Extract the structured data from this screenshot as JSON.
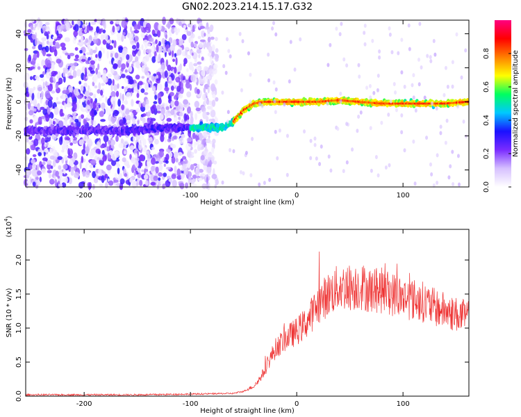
{
  "page_title": "GN02.2023.214.15.17.G32",
  "chart_data": [
    {
      "type": "heatmap",
      "title": "GN02.2023.214.15.17.G32",
      "xlabel": "Height of straight line (km)",
      "ylabel": "Frequency (Hz)",
      "xlim": [
        -255,
        162
      ],
      "ylim": [
        -50,
        48
      ],
      "xticks": [
        -200,
        -100,
        0,
        100
      ],
      "yticks": [
        -40,
        -20,
        0,
        20,
        40
      ],
      "colorbar": {
        "label": "Normalized spectral amplitude",
        "range": [
          0.0,
          1.0
        ],
        "ticks": [
          "0.0",
          "0.2",
          "0.4",
          "0.6",
          "0.8"
        ],
        "colors": [
          "#ffffff",
          "#d6c0ff",
          "#7a2cff",
          "#1a10ff",
          "#00c8ff",
          "#00ff60",
          "#ffff00",
          "#ff8000",
          "#ff0000",
          "#ff0080"
        ]
      },
      "ridge": {
        "x": [
          -160,
          -140,
          -120,
          -100,
          -90,
          -80,
          -70,
          -60,
          -50,
          -40,
          -30,
          -20,
          -10,
          0,
          20,
          40,
          60,
          80,
          100,
          120,
          140,
          160
        ],
        "frequency": [
          -17,
          -16,
          -15,
          -15,
          -15,
          -15,
          -15,
          -12,
          -5,
          -1,
          0,
          0,
          0,
          0,
          0,
          1,
          0,
          -1,
          -1,
          -1,
          -1,
          0
        ]
      },
      "noise_region_x": [
        -255,
        -75
      ]
    },
    {
      "type": "line",
      "xlabel": "Height of straight line (km)",
      "ylabel": "SNR (10 * v/v)",
      "scale_label": "(x10^4)",
      "xlim": [
        -255,
        162
      ],
      "ylim": [
        0.0,
        2.45
      ],
      "xticks": [
        -200,
        -100,
        0,
        100
      ],
      "yticks": [
        "0.0",
        "0.5",
        "1.0",
        "1.5",
        "2.0"
      ],
      "color": "#ee3333",
      "series": [
        {
          "x": [
            -255,
            -200,
            -150,
            -100,
            -60,
            -50,
            -40,
            -35,
            -30,
            -25,
            -20,
            -10,
            0,
            10,
            20,
            30,
            40,
            50,
            60,
            70,
            80,
            90,
            100,
            110,
            120,
            130,
            140,
            150,
            162
          ],
          "values": [
            0.02,
            0.02,
            0.02,
            0.03,
            0.04,
            0.07,
            0.15,
            0.25,
            0.38,
            0.55,
            0.7,
            0.85,
            0.95,
            1.1,
            1.35,
            1.5,
            1.6,
            1.6,
            1.62,
            1.55,
            1.55,
            1.5,
            1.45,
            1.42,
            1.38,
            1.3,
            1.25,
            1.2,
            1.15
          ]
        }
      ]
    }
  ]
}
